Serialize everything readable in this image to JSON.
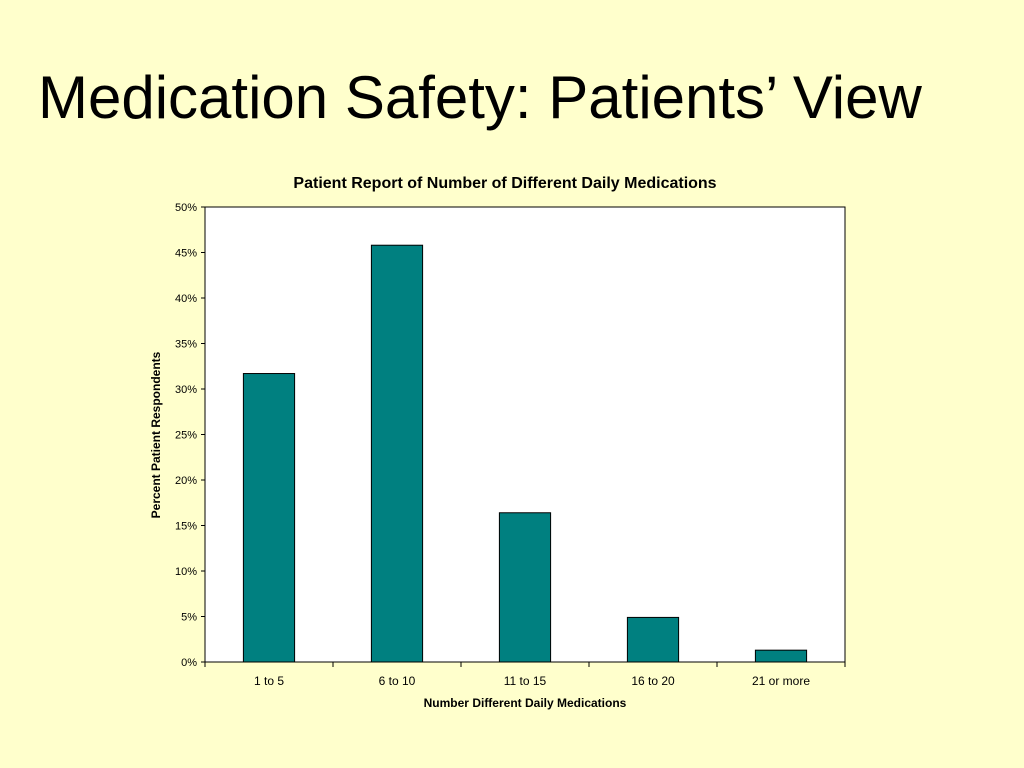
{
  "slide": {
    "title": "Medication Safety: Patients’ View"
  },
  "chart_data": {
    "type": "bar",
    "title": "Patient Report of Number of Different Daily Medications",
    "xlabel": "Number Different Daily Medications",
    "ylabel": "Percent Patient Respondents",
    "categories": [
      "1 to 5",
      "6 to 10",
      "11 to 15",
      "16 to 20",
      "21 or more"
    ],
    "values": [
      31.7,
      45.8,
      16.4,
      4.9,
      1.3
    ],
    "ylim": [
      0,
      50
    ],
    "ytick_step": 5,
    "ytick_suffix": "%",
    "grid": false,
    "legend": "none",
    "bar_color": "#008080",
    "background_color": "#FFFFCC",
    "plot_background_color": "#FFFFFF"
  }
}
